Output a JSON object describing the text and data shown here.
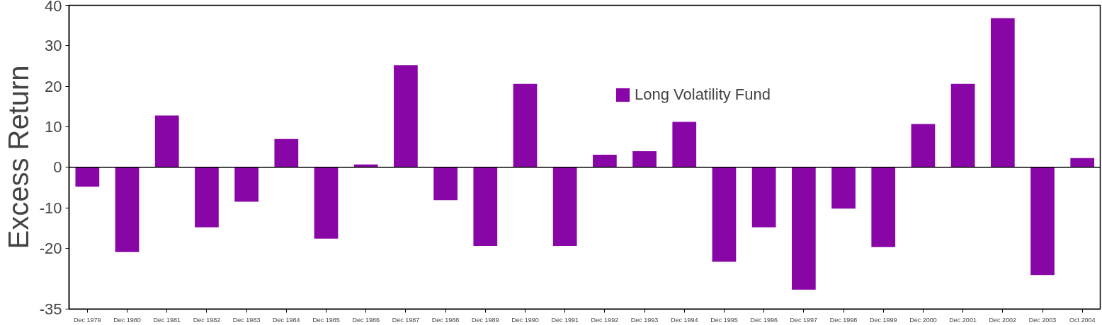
{
  "chart_data": {
    "type": "bar",
    "ylabel": "Excess Return",
    "categories": [
      "Dec 1979",
      "Dec 1980",
      "Dec 1981",
      "Dec 1982",
      "Dec 1983",
      "Dec 1984",
      "Dec 1985",
      "Dec 1986",
      "Dec 1987",
      "Dec 1988",
      "Dec 1989",
      "Dec 1990",
      "Dec 1991",
      "Dec 1992",
      "Dec 1993",
      "Dec 1994",
      "Dec 1995",
      "Dec 1996",
      "Dec 1997",
      "Dec 1998",
      "Dec 1999",
      "Dec 2000",
      "Dec 2001",
      "Dec 2002",
      "Dec 2003",
      "Oct 2004"
    ],
    "series": [
      {
        "name": "Long Volatility Fund",
        "color": "#8806a6",
        "values": [
          -4.8,
          -20.9,
          12.8,
          -14.8,
          -8.5,
          7.0,
          -17.6,
          0.7,
          25.2,
          -8.1,
          -19.4,
          20.6,
          -19.4,
          3.1,
          4.0,
          11.2,
          -23.3,
          -14.8,
          -30.2,
          -10.2,
          -19.7,
          10.7,
          20.6,
          36.8,
          -26.6,
          2.3
        ]
      }
    ],
    "ylim": [
      -35,
      40
    ],
    "yticks": [
      -35,
      -20,
      -10,
      0,
      10,
      20,
      30,
      40
    ],
    "ref_lines": [
      {
        "axis": "y",
        "value": 0,
        "color": "#000000"
      }
    ],
    "grid": false,
    "legend": "top right"
  }
}
